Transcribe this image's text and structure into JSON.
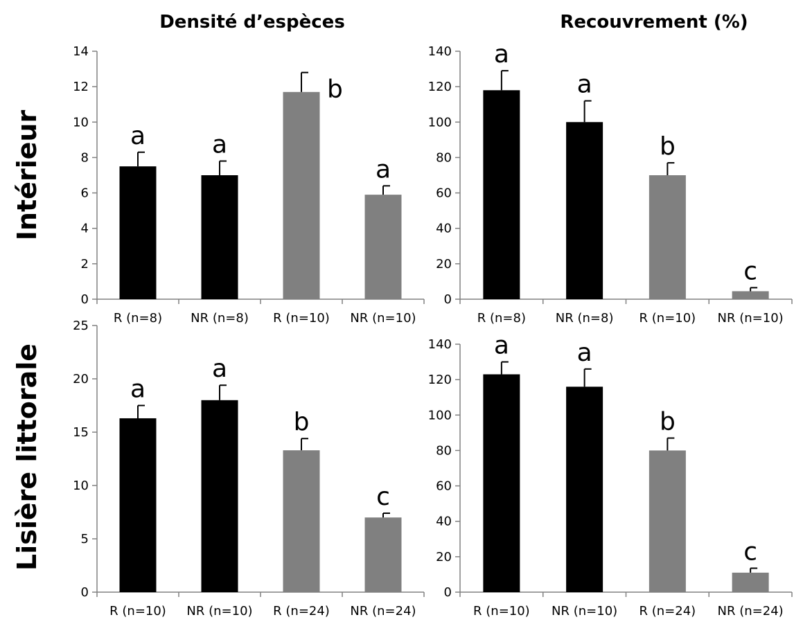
{
  "column_titles": [
    "Densité d’espèces",
    "Recouvrement (%)"
  ],
  "row_titles": [
    "Intérieur",
    "Lisière littorale"
  ],
  "colors": {
    "R_group_1": "#000000",
    "R_group_2": "#808080",
    "axis": "#808080"
  },
  "chart_data": [
    {
      "id": "interieur-densite",
      "type": "bar",
      "title": "",
      "categories": [
        "R (n=8)",
        "NR (n=8)",
        "R (n=10)",
        "NR (n=10)"
      ],
      "values": [
        7.5,
        7.0,
        11.7,
        5.9
      ],
      "errors": [
        0.8,
        0.8,
        1.1,
        0.5
      ],
      "letters": [
        "a",
        "a",
        "b",
        "a"
      ],
      "bar_colors": [
        "#000000",
        "#000000",
        "#808080",
        "#808080"
      ],
      "yticks": [
        "0",
        "2",
        "4",
        "6",
        "8",
        "10",
        "12",
        "14"
      ],
      "ylim": [
        0,
        14
      ]
    },
    {
      "id": "interieur-recouvrement",
      "type": "bar",
      "title": "",
      "categories": [
        "R (n=8)",
        "NR (n=8)",
        "R (n=10)",
        "NR (n=10)"
      ],
      "values": [
        118,
        100,
        70,
        4.5
      ],
      "errors": [
        11,
        12,
        7,
        2
      ],
      "letters": [
        "a",
        "a",
        "b",
        "c"
      ],
      "bar_colors": [
        "#000000",
        "#000000",
        "#808080",
        "#808080"
      ],
      "yticks": [
        "0",
        "20",
        "40",
        "60",
        "80",
        "100",
        "120",
        "140"
      ],
      "ylim": [
        0,
        140
      ]
    },
    {
      "id": "lisiere-densite",
      "type": "bar",
      "title": "",
      "categories": [
        "R (n=10)",
        "NR (n=10)",
        "R (n=24)",
        "NR (n=24)"
      ],
      "values": [
        16.3,
        18.0,
        13.3,
        7.0
      ],
      "errors": [
        1.2,
        1.4,
        1.1,
        0.4
      ],
      "letters": [
        "a",
        "a",
        "b",
        "c"
      ],
      "bar_colors": [
        "#000000",
        "#000000",
        "#808080",
        "#808080"
      ],
      "yticks": [
        "0",
        "5",
        "10",
        "15",
        "20",
        "25"
      ],
      "ylim": [
        0,
        25
      ]
    },
    {
      "id": "lisiere-recouvrement",
      "type": "bar",
      "title": "",
      "categories": [
        "R (n=10)",
        "NR (n=10)",
        "R (n=24)",
        "NR (n=24)"
      ],
      "values": [
        123,
        116,
        80,
        11
      ],
      "errors": [
        7,
        10,
        7,
        2.5
      ],
      "letters": [
        "a",
        "a",
        "b",
        "c"
      ],
      "bar_colors": [
        "#000000",
        "#000000",
        "#808080",
        "#808080"
      ],
      "yticks": [
        "0",
        "20",
        "40",
        "60",
        "80",
        "100",
        "120",
        "140"
      ],
      "ylim": [
        0,
        140
      ]
    }
  ]
}
